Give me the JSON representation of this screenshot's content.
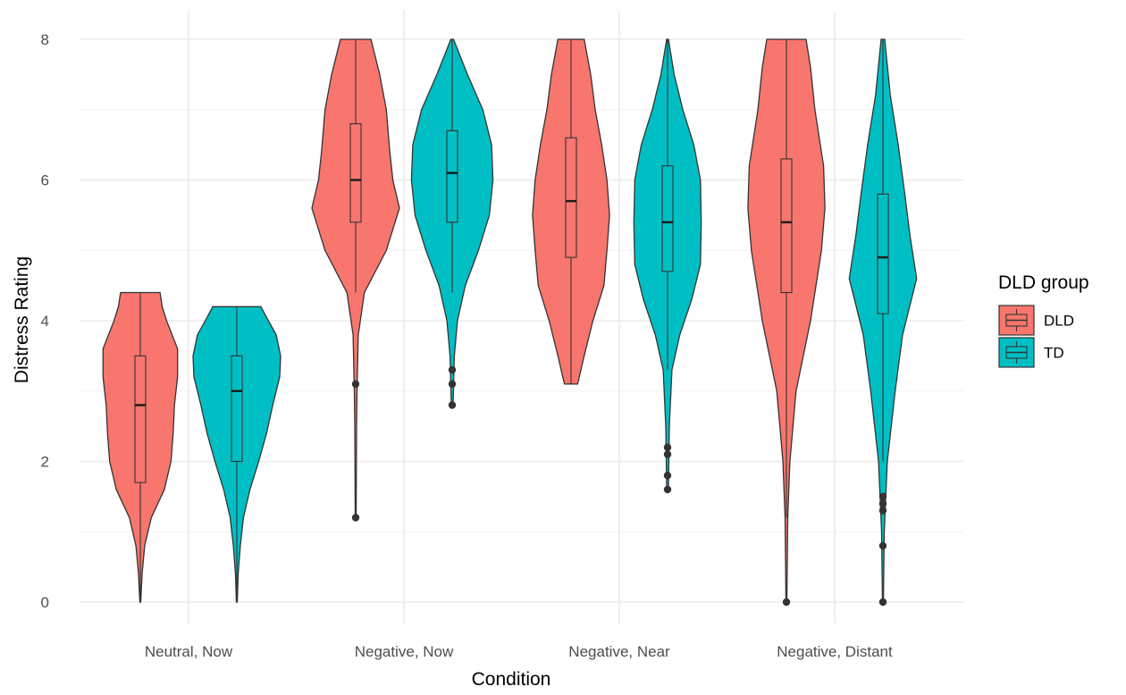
{
  "chart_data": {
    "type": "violin",
    "title": "",
    "xlabel": "Condition",
    "ylabel": "Distress Rating",
    "ylim": [
      -0.3,
      8.1
    ],
    "yticks": [
      0,
      2,
      4,
      6,
      8
    ],
    "categories": [
      "Neutral, Now",
      "Negative, Now",
      "Negative, Near",
      "Negative, Distant"
    ],
    "grid": true,
    "legend": {
      "title": "DLD group",
      "position": "right"
    },
    "series": [
      {
        "name": "DLD",
        "color": "#F8766D",
        "groups": [
          {
            "category": "Neutral, Now",
            "box": {
              "min": 0,
              "q1": 1.7,
              "median": 2.8,
              "q3": 3.5,
              "max": 4.4
            },
            "outliers": [],
            "density": [
              [
                0,
                0.01
              ],
              [
                0.4,
                0.04
              ],
              [
                0.8,
                0.1
              ],
              [
                1.2,
                0.25
              ],
              [
                1.6,
                0.55
              ],
              [
                2.0,
                0.7
              ],
              [
                2.4,
                0.75
              ],
              [
                2.8,
                0.78
              ],
              [
                3.2,
                0.85
              ],
              [
                3.6,
                0.85
              ],
              [
                4.0,
                0.6
              ],
              [
                4.2,
                0.5
              ],
              [
                4.4,
                0.45
              ]
            ]
          },
          {
            "category": "Negative, Now",
            "box": {
              "min": 4.4,
              "q1": 5.4,
              "median": 6.0,
              "q3": 6.8,
              "max": 8.0
            },
            "outliers": [
              3.1,
              1.2
            ],
            "density": [
              [
                1.2,
                0.01
              ],
              [
                2.5,
                0.02
              ],
              [
                3.0,
                0.03
              ],
              [
                3.8,
                0.06
              ],
              [
                4.4,
                0.2
              ],
              [
                5.0,
                0.7
              ],
              [
                5.6,
                1.0
              ],
              [
                6.0,
                0.85
              ],
              [
                6.4,
                0.78
              ],
              [
                7.0,
                0.7
              ],
              [
                7.5,
                0.55
              ],
              [
                8.0,
                0.35
              ]
            ]
          },
          {
            "category": "Negative, Near",
            "box": {
              "min": 3.1,
              "q1": 4.9,
              "median": 5.7,
              "q3": 6.6,
              "max": 8.0
            },
            "outliers": [],
            "density": [
              [
                3.1,
                0.15
              ],
              [
                3.5,
                0.3
              ],
              [
                4.0,
                0.5
              ],
              [
                4.5,
                0.75
              ],
              [
                5.0,
                0.82
              ],
              [
                5.5,
                0.88
              ],
              [
                6.0,
                0.82
              ],
              [
                6.5,
                0.7
              ],
              [
                7.0,
                0.55
              ],
              [
                7.5,
                0.45
              ],
              [
                8.0,
                0.3
              ]
            ]
          },
          {
            "category": "Negative, Distant",
            "box": {
              "min": 1.2,
              "q1": 4.4,
              "median": 5.4,
              "q3": 6.3,
              "max": 8.0
            },
            "outliers": [
              0
            ],
            "density": [
              [
                0,
                0.01
              ],
              [
                1.2,
                0.03
              ],
              [
                2.0,
                0.08
              ],
              [
                3.0,
                0.22
              ],
              [
                4.0,
                0.55
              ],
              [
                5.0,
                0.8
              ],
              [
                5.6,
                0.88
              ],
              [
                6.2,
                0.85
              ],
              [
                7.0,
                0.65
              ],
              [
                7.6,
                0.55
              ],
              [
                8.0,
                0.45
              ]
            ]
          }
        ]
      },
      {
        "name": "TD",
        "color": "#00BFC4",
        "groups": [
          {
            "category": "Neutral, Now",
            "box": {
              "min": 0,
              "q1": 2.0,
              "median": 3.0,
              "q3": 3.5,
              "max": 4.2
            },
            "outliers": [],
            "density": [
              [
                0,
                0.01
              ],
              [
                0.4,
                0.03
              ],
              [
                0.8,
                0.08
              ],
              [
                1.2,
                0.15
              ],
              [
                1.6,
                0.3
              ],
              [
                2.0,
                0.5
              ],
              [
                2.4,
                0.68
              ],
              [
                2.8,
                0.82
              ],
              [
                3.2,
                0.98
              ],
              [
                3.5,
                1.0
              ],
              [
                3.8,
                0.9
              ],
              [
                4.0,
                0.72
              ],
              [
                4.2,
                0.55
              ]
            ]
          },
          {
            "category": "Negative, Now",
            "box": {
              "min": 4.4,
              "q1": 5.4,
              "median": 6.1,
              "q3": 6.7,
              "max": 8.0
            },
            "outliers": [
              3.3,
              3.1,
              2.8
            ],
            "density": [
              [
                2.8,
                0.02
              ],
              [
                3.5,
                0.05
              ],
              [
                4.0,
                0.12
              ],
              [
                4.5,
                0.3
              ],
              [
                5.0,
                0.6
              ],
              [
                5.5,
                0.85
              ],
              [
                6.0,
                0.93
              ],
              [
                6.5,
                0.9
              ],
              [
                7.0,
                0.7
              ],
              [
                7.5,
                0.35
              ],
              [
                8.0,
                0.03
              ]
            ]
          },
          {
            "category": "Negative, Near",
            "box": {
              "min": 3.3,
              "q1": 4.7,
              "median": 5.4,
              "q3": 6.2,
              "max": 8.0
            },
            "outliers": [
              2.2,
              2.1,
              1.8,
              1.6
            ],
            "density": [
              [
                1.6,
                0.02
              ],
              [
                2.5,
                0.04
              ],
              [
                3.3,
                0.1
              ],
              [
                3.8,
                0.28
              ],
              [
                4.3,
                0.55
              ],
              [
                4.8,
                0.75
              ],
              [
                5.4,
                0.77
              ],
              [
                6.0,
                0.75
              ],
              [
                6.5,
                0.6
              ],
              [
                7.0,
                0.35
              ],
              [
                7.5,
                0.15
              ],
              [
                8.0,
                0.02
              ]
            ]
          },
          {
            "category": "Negative, Distant",
            "box": {
              "min": 2.0,
              "q1": 4.1,
              "median": 4.9,
              "q3": 5.8,
              "max": 8.0
            },
            "outliers": [
              1.5,
              1.4,
              1.3,
              0.8,
              0
            ],
            "density": [
              [
                0,
                0.01
              ],
              [
                1.0,
                0.03
              ],
              [
                2.0,
                0.1
              ],
              [
                3.0,
                0.28
              ],
              [
                3.8,
                0.45
              ],
              [
                4.6,
                0.77
              ],
              [
                5.2,
                0.62
              ],
              [
                5.8,
                0.5
              ],
              [
                6.5,
                0.35
              ],
              [
                7.2,
                0.17
              ],
              [
                8.0,
                0.04
              ]
            ]
          }
        ]
      }
    ]
  }
}
